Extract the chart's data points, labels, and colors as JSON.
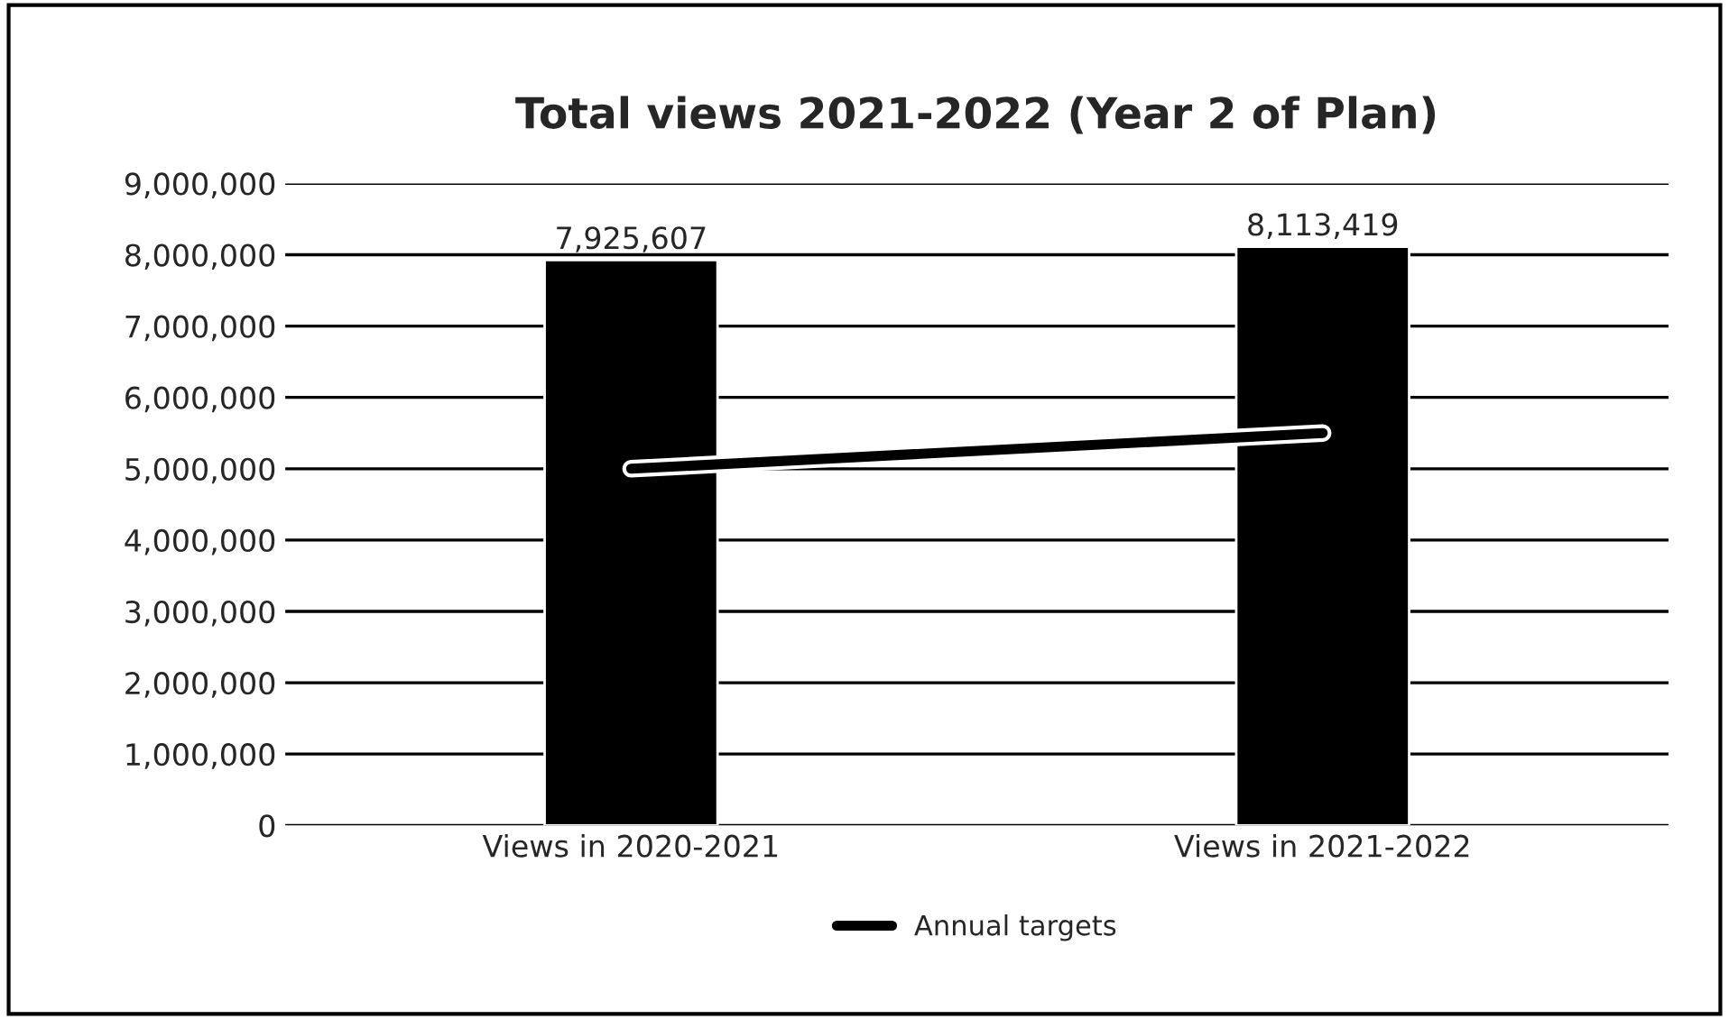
{
  "chart_data": {
    "type": "bar",
    "title": "Total views 2021-2022 (Year 2 of Plan)",
    "categories": [
      "Views in 2020-2021",
      "Views in 2021-2022"
    ],
    "series": [
      {
        "color": "#000000",
        "values": [
          7925607,
          8113419
        ],
        "value_labels": [
          "7,925,607",
          "8,113,419"
        ]
      },
      {
        "type": "line",
        "name": "Annual targets",
        "color": "#000000",
        "values": [
          5000000,
          5500000
        ]
      }
    ],
    "ylim": [
      0,
      9000000
    ],
    "yticks": [
      {
        "value": 0,
        "label": "0"
      },
      {
        "value": 1000000,
        "label": "1,000,000"
      },
      {
        "value": 2000000,
        "label": "2,000,000"
      },
      {
        "value": 3000000,
        "label": "3,000,000"
      },
      {
        "value": 4000000,
        "label": "4,000,000"
      },
      {
        "value": 5000000,
        "label": "5,000,000"
      },
      {
        "value": 6000000,
        "label": "6,000,000"
      },
      {
        "value": 7000000,
        "label": "7,000,000"
      },
      {
        "value": 8000000,
        "label": "8,000,000"
      },
      {
        "value": 9000000,
        "label": "9,000,000"
      }
    ],
    "grid": "y",
    "legend": "bottom"
  }
}
